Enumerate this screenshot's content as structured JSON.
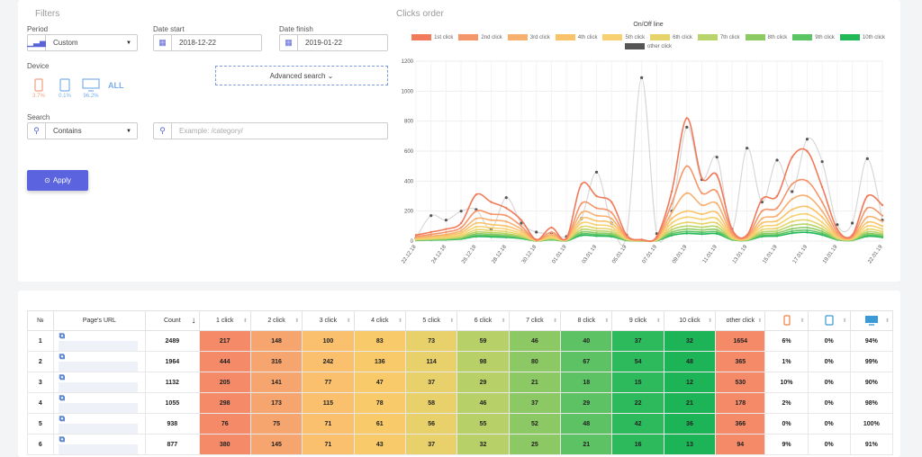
{
  "filters": {
    "title": "Filters",
    "period_label": "Period",
    "period_value": "Custom",
    "date_start_label": "Date start",
    "date_start_value": "2018-12-22",
    "date_finish_label": "Date finish",
    "date_finish_value": "2019-01-22",
    "device_label": "Device",
    "devices": [
      {
        "name": "mobile",
        "percent": "3.7%",
        "color": "#f0a080"
      },
      {
        "name": "tablet",
        "percent": "0.1%",
        "color": "#7ab0e8"
      },
      {
        "name": "desktop",
        "percent": "96.2%",
        "color": "#7ab0e8"
      }
    ],
    "device_all": "ALL",
    "advanced_search": "Advanced search ⌄",
    "search_label": "Search",
    "search_mode": "Contains",
    "search_placeholder": "Example: /category/",
    "apply_label": "Apply"
  },
  "chart_data": {
    "type": "line",
    "title": "Clicks order",
    "subtitle": "On/Off line",
    "x": [
      "22.12.18",
      "23.12.18",
      "24.12.18",
      "25.12.18",
      "26.12.18",
      "27.12.18",
      "28.12.18",
      "29.12.18",
      "30.12.18",
      "31.12.18",
      "01.01.19",
      "02.01.19",
      "03.01.19",
      "04.01.19",
      "05.01.19",
      "06.01.19",
      "07.01.19",
      "08.01.19",
      "09.01.19",
      "10.01.19",
      "11.01.19",
      "12.01.19",
      "13.01.19",
      "14.01.19",
      "15.01.19",
      "16.01.19",
      "17.01.19",
      "18.01.19",
      "19.01.19",
      "20.01.19",
      "21.01.19",
      "22.01.19"
    ],
    "x_tick_labels": [
      "22.12.18",
      "24.12.18",
      "26.12.18",
      "28.12.18",
      "30.12.18",
      "01.01.19",
      "03.01.19",
      "05.01.19",
      "07.01.19",
      "09.01.19",
      "11.01.19",
      "13.01.19",
      "15.01.19",
      "17.01.19",
      "19.01.19",
      "22.01.19"
    ],
    "ylim": [
      0,
      1200
    ],
    "yticks": [
      0,
      200,
      400,
      600,
      800,
      1000,
      1200
    ],
    "grid": true,
    "legend_position": "top",
    "series": [
      {
        "name": "1st click",
        "color": "#f07a5a",
        "values": [
          40,
          60,
          80,
          120,
          310,
          260,
          220,
          140,
          10,
          90,
          20,
          380,
          300,
          260,
          40,
          10,
          30,
          330,
          820,
          420,
          440,
          80,
          40,
          280,
          300,
          560,
          600,
          360,
          80,
          40,
          300,
          240
        ]
      },
      {
        "name": "2nd click",
        "color": "#f5966a",
        "values": [
          30,
          45,
          60,
          90,
          200,
          180,
          170,
          100,
          8,
          60,
          15,
          250,
          220,
          190,
          30,
          8,
          20,
          250,
          500,
          320,
          330,
          60,
          30,
          200,
          220,
          380,
          400,
          260,
          60,
          30,
          220,
          170
        ]
      },
      {
        "name": "3rd click",
        "color": "#f8b070",
        "values": [
          22,
          34,
          45,
          70,
          150,
          140,
          130,
          80,
          6,
          45,
          12,
          190,
          170,
          150,
          24,
          6,
          16,
          190,
          320,
          240,
          250,
          45,
          24,
          150,
          170,
          280,
          300,
          200,
          45,
          24,
          160,
          130
        ]
      },
      {
        "name": "4th click",
        "color": "#fac36a",
        "values": [
          18,
          28,
          36,
          56,
          120,
          110,
          100,
          64,
          5,
          36,
          10,
          150,
          135,
          120,
          20,
          5,
          13,
          150,
          200,
          180,
          190,
          36,
          20,
          120,
          135,
          210,
          230,
          160,
          36,
          20,
          125,
          100
        ]
      },
      {
        "name": "5th click",
        "color": "#f8d070",
        "values": [
          14,
          22,
          28,
          44,
          95,
          88,
          80,
          50,
          4,
          28,
          8,
          120,
          108,
          96,
          16,
          4,
          10,
          120,
          160,
          145,
          150,
          28,
          16,
          96,
          108,
          165,
          180,
          125,
          28,
          16,
          100,
          80
        ]
      },
      {
        "name": "6th click",
        "color": "#e6d46a",
        "values": [
          11,
          17,
          22,
          34,
          75,
          70,
          63,
          40,
          3,
          22,
          6,
          95,
          85,
          76,
          12,
          3,
          8,
          95,
          125,
          115,
          120,
          22,
          12,
          76,
          85,
          130,
          140,
          100,
          22,
          12,
          78,
          63
        ]
      },
      {
        "name": "7th click",
        "color": "#b9d46a",
        "values": [
          9,
          14,
          18,
          28,
          60,
          56,
          50,
          32,
          2,
          18,
          5,
          76,
          68,
          60,
          10,
          2,
          6,
          76,
          100,
          92,
          96,
          18,
          10,
          60,
          68,
          104,
          112,
          80,
          18,
          10,
          62,
          50
        ]
      },
      {
        "name": "8th click",
        "color": "#8cca64",
        "values": [
          7,
          11,
          14,
          22,
          48,
          45,
          40,
          26,
          2,
          14,
          4,
          60,
          54,
          48,
          8,
          2,
          5,
          60,
          80,
          74,
          76,
          14,
          8,
          48,
          54,
          82,
          90,
          64,
          14,
          8,
          50,
          40
        ]
      },
      {
        "name": "9th click",
        "color": "#5bc463",
        "values": [
          6,
          9,
          11,
          18,
          38,
          36,
          32,
          21,
          1,
          11,
          3,
          48,
          43,
          38,
          6,
          1,
          4,
          48,
          64,
          59,
          61,
          11,
          6,
          38,
          43,
          66,
          72,
          51,
          11,
          6,
          40,
          32
        ]
      },
      {
        "name": "10th click",
        "color": "#22b858",
        "values": [
          5,
          7,
          9,
          14,
          30,
          28,
          25,
          17,
          1,
          9,
          2,
          38,
          34,
          30,
          5,
          1,
          3,
          38,
          51,
          47,
          49,
          9,
          5,
          30,
          34,
          53,
          58,
          41,
          9,
          5,
          32,
          25
        ]
      },
      {
        "name": "other click",
        "color": "#555555",
        "values": [
          20,
          170,
          140,
          200,
          210,
          80,
          290,
          120,
          60,
          50,
          30,
          150,
          460,
          120,
          40,
          1090,
          50,
          200,
          760,
          410,
          560,
          80,
          620,
          260,
          540,
          330,
          680,
          530,
          110,
          120,
          550,
          140
        ]
      }
    ]
  },
  "table": {
    "headers": [
      "№",
      "Page's URL",
      "Count",
      "1 click",
      "2 click",
      "3 click",
      "4 click",
      "5 click",
      "6 click",
      "7 click",
      "8 click",
      "9 click",
      "10 click",
      "other click"
    ],
    "device_headers": [
      "mobile",
      "tablet",
      "desktop"
    ],
    "sort_arrow": "↓",
    "rows": [
      {
        "n": "1",
        "count": "2489",
        "clicks": [
          "217",
          "148",
          "100",
          "83",
          "73",
          "59",
          "46",
          "40",
          "37",
          "32",
          "1654"
        ],
        "mobile": "6%",
        "tablet": "0%",
        "desktop": "94%"
      },
      {
        "n": "2",
        "count": "1964",
        "clicks": [
          "444",
          "316",
          "242",
          "136",
          "114",
          "98",
          "80",
          "67",
          "54",
          "48",
          "365"
        ],
        "mobile": "1%",
        "tablet": "0%",
        "desktop": "99%"
      },
      {
        "n": "3",
        "count": "1132",
        "clicks": [
          "205",
          "141",
          "77",
          "47",
          "37",
          "29",
          "21",
          "18",
          "15",
          "12",
          "530"
        ],
        "mobile": "10%",
        "tablet": "0%",
        "desktop": "90%"
      },
      {
        "n": "4",
        "count": "1055",
        "clicks": [
          "298",
          "173",
          "115",
          "78",
          "58",
          "46",
          "37",
          "29",
          "22",
          "21",
          "178"
        ],
        "mobile": "2%",
        "tablet": "0%",
        "desktop": "98%"
      },
      {
        "n": "5",
        "count": "938",
        "clicks": [
          "76",
          "75",
          "71",
          "61",
          "56",
          "55",
          "52",
          "48",
          "42",
          "36",
          "366"
        ],
        "mobile": "0%",
        "tablet": "0%",
        "desktop": "100%"
      },
      {
        "n": "6",
        "count": "877",
        "clicks": [
          "380",
          "145",
          "71",
          "43",
          "37",
          "32",
          "25",
          "21",
          "16",
          "13",
          "94"
        ],
        "mobile": "9%",
        "tablet": "0%",
        "desktop": "91%"
      }
    ],
    "column_colors": [
      "#f48a68",
      "#f7a56e",
      "#fac06e",
      "#f8ca6a",
      "#e8d06a",
      "#b8d068",
      "#8cc864",
      "#5cc264",
      "#2cba5c",
      "#1cb456",
      "#f48a68"
    ]
  }
}
